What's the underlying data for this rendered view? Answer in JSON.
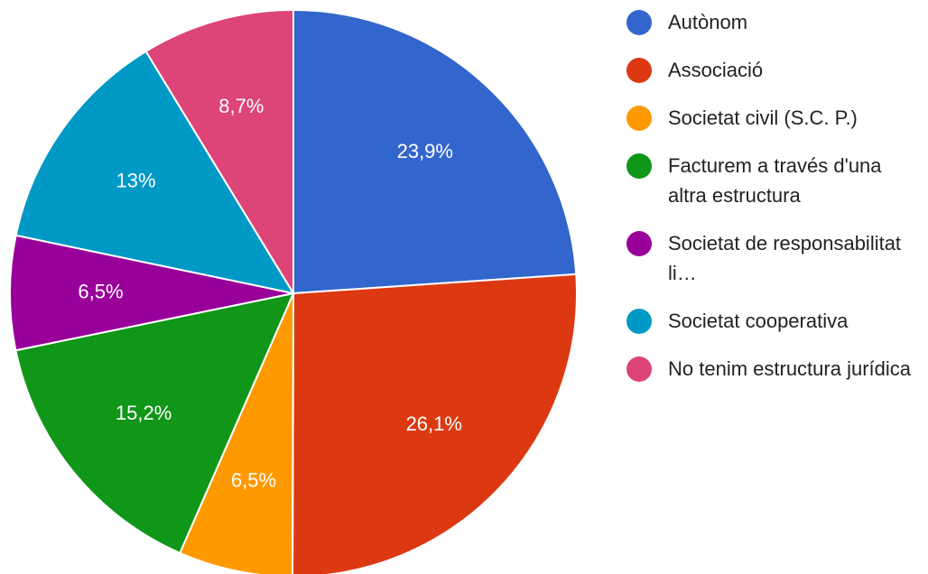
{
  "chart_data": {
    "type": "pie",
    "categories": [
      "Autònom",
      "Associació",
      "Societat civil (S.C. P.)",
      "Facturem a través d'una altra estructura",
      "Societat de responsabilitat li…",
      "Societat cooperativa",
      "No tenim estructura jurídica"
    ],
    "values": [
      23.9,
      26.1,
      6.5,
      15.2,
      6.5,
      13,
      8.7
    ],
    "value_labels": [
      "23,9%",
      "26,1%",
      "6,5%",
      "15,2%",
      "6,5%",
      "13%",
      "8,7%"
    ],
    "colors": [
      "#3366cc",
      "#dc3912",
      "#ff9900",
      "#109618",
      "#990099",
      "#0099c6",
      "#dd4477"
    ],
    "legend": "right"
  }
}
